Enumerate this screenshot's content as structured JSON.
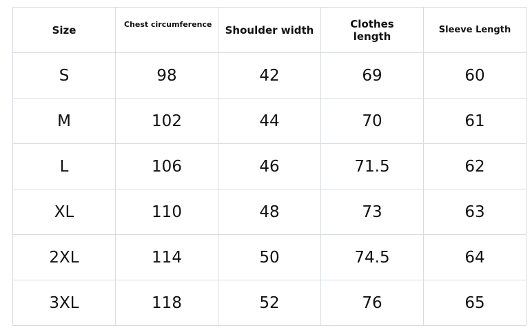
{
  "table": {
    "headers": [
      "Size",
      "Chest circumference",
      "Shoulder width",
      "Clothes length",
      "Sleeve Length"
    ],
    "rows": [
      [
        "S",
        "98",
        "42",
        "69",
        "60"
      ],
      [
        "M",
        "102",
        "44",
        "70",
        "61"
      ],
      [
        "L",
        "106",
        "46",
        "71.5",
        "62"
      ],
      [
        "XL",
        "110",
        "48",
        "73",
        "63"
      ],
      [
        "2XL",
        "114",
        "50",
        "74.5",
        "64"
      ],
      [
        "3XL",
        "118",
        "52",
        "76",
        "65"
      ]
    ],
    "border_color": "#d6dbe6"
  }
}
